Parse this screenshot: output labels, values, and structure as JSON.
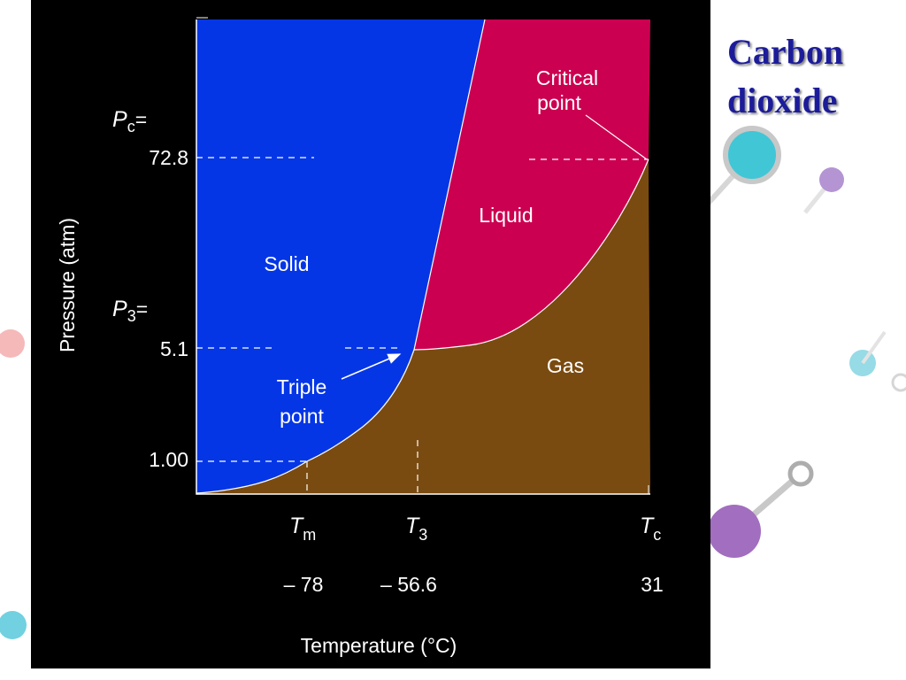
{
  "title": [
    "Carbon",
    "dioxide"
  ],
  "diagram": {
    "y_axis_label": "Pressure (atm)",
    "x_axis_label": "Temperature (°C)",
    "pressure_labels": [
      {
        "symbol": "P",
        "subscript": "c",
        "suffix": "=",
        "value": "72.8"
      },
      {
        "symbol": "P",
        "subscript": "3",
        "suffix": "=",
        "value": "5.1"
      },
      {
        "value": "1.00"
      }
    ],
    "temperature_labels": [
      {
        "symbol": "T",
        "subscript": "m",
        "value": "– 78"
      },
      {
        "symbol": "T",
        "subscript": "3",
        "value": "– 56.6"
      },
      {
        "symbol": "T",
        "subscript": "c",
        "value": "31"
      }
    ],
    "regions": {
      "solid": "Solid",
      "liquid": "Liquid",
      "gas": "Gas"
    },
    "annotations": {
      "triple_point": [
        "Triple",
        "point"
      ],
      "critical_point": [
        "Critical",
        "point"
      ]
    }
  }
}
